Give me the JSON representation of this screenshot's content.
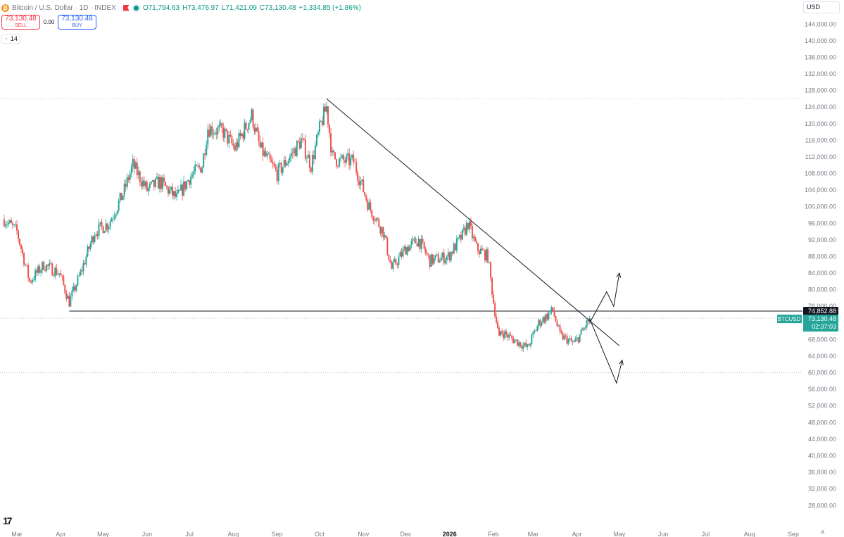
{
  "header": {
    "symbol": "Bitcoin / U.S. Dollar · 1D · INDEX",
    "open": "O71,794.63",
    "high": "H73,476.97",
    "low": "L71,421.09",
    "close": "C73,130.48",
    "change": "+1,334.85 (+1.86%)",
    "coin_icon": "bitcoin-icon",
    "coin_glyph": "₿"
  },
  "trade": {
    "sell_price": "73,130.48",
    "sell_label": "SELL",
    "spread": "0.00",
    "buy_price": "73,130.48",
    "buy_label": "BUY"
  },
  "indicator": {
    "count": "14"
  },
  "currency": {
    "label": "USD"
  },
  "footer": {
    "auto_label": "A"
  },
  "colors": {
    "up": "#26a69a",
    "down": "#ef5350",
    "grid": "#b2b5be",
    "drawing": "#131722",
    "axis_text": "#787b86",
    "badge_dark": "#131722",
    "badge_teal": "#26a69a"
  },
  "chart_data": {
    "type": "candlestick",
    "price_axis": {
      "min": 26000,
      "max": 146000,
      "ticks": [
        "144,000.00",
        "140,000.00",
        "136,000.00",
        "132,000.00",
        "128,000.00",
        "124,000.00",
        "120,000.00",
        "116,000.00",
        "112,000.00",
        "108,000.00",
        "104,000.00",
        "100,000.00",
        "96,000.00",
        "92,000.00",
        "88,000.00",
        "84,000.00",
        "80,000.00",
        "76,000.00",
        "68,000.00",
        "64,000.00",
        "60,000.00",
        "56,000.00",
        "52,000.00",
        "48,000.00",
        "44,000.00",
        "40,000.00",
        "36,000.00",
        "32,000.00",
        "28,000.00"
      ],
      "tick_values": [
        144000,
        140000,
        136000,
        132000,
        128000,
        124000,
        120000,
        116000,
        112000,
        108000,
        104000,
        100000,
        96000,
        92000,
        88000,
        84000,
        80000,
        76000,
        68000,
        64000,
        60000,
        56000,
        52000,
        48000,
        44000,
        40000,
        36000,
        32000,
        28000
      ]
    },
    "time_axis": {
      "labels": [
        "Mar",
        "Apr",
        "May",
        "Jun",
        "Jul",
        "Aug",
        "Sep",
        "Oct",
        "Nov",
        "Dec",
        "2026",
        "Feb",
        "Mar",
        "Apr",
        "May",
        "Jun",
        "Jul",
        "Aug",
        "Sep"
      ],
      "bold": [
        false,
        false,
        false,
        false,
        false,
        false,
        false,
        false,
        false,
        false,
        true,
        false,
        false,
        false,
        false,
        false,
        false,
        false,
        false
      ],
      "dates": [
        "2025-03-01",
        "2025-04-01",
        "2025-05-01",
        "2025-06-01",
        "2025-07-01",
        "2025-08-01",
        "2025-09-01",
        "2025-10-01",
        "2025-11-01",
        "2025-12-01",
        "2026-01-01",
        "2026-02-01",
        "2026-03-01",
        "2026-04-01",
        "2026-05-01",
        "2026-06-01",
        "2026-07-01",
        "2026-08-01",
        "2026-09-01"
      ]
    },
    "price_path": {
      "dates": [
        "2025-02-20",
        "2025-03-01",
        "2025-03-10",
        "2025-03-20",
        "2025-03-31",
        "2025-04-07",
        "2025-04-15",
        "2025-04-25",
        "2025-05-05",
        "2025-05-15",
        "2025-05-22",
        "2025-06-01",
        "2025-06-10",
        "2025-06-22",
        "2025-07-01",
        "2025-07-10",
        "2025-07-14",
        "2025-07-25",
        "2025-08-02",
        "2025-08-14",
        "2025-08-20",
        "2025-09-01",
        "2025-09-10",
        "2025-09-18",
        "2025-09-25",
        "2025-10-02",
        "2025-10-06",
        "2025-10-10",
        "2025-10-15",
        "2025-10-25",
        "2025-11-05",
        "2025-11-15",
        "2025-11-21",
        "2025-12-01",
        "2025-12-10",
        "2025-12-18",
        "2025-12-31",
        "2026-01-10",
        "2026-01-14",
        "2026-01-20",
        "2026-01-28",
        "2026-02-01",
        "2026-02-05",
        "2026-02-06",
        "2026-02-15",
        "2026-02-25",
        "2026-03-05",
        "2026-03-15",
        "2026-03-20",
        "2026-03-30",
        "2026-04-05",
        "2026-04-10"
      ],
      "close": [
        97000,
        94000,
        82000,
        86000,
        84000,
        77000,
        84000,
        94000,
        96000,
        103000,
        110000,
        104000,
        106000,
        102000,
        107000,
        110000,
        119000,
        118000,
        114000,
        122000,
        114000,
        108000,
        112000,
        116000,
        110000,
        120000,
        124000,
        112000,
        111000,
        111000,
        100000,
        94000,
        85000,
        90000,
        92000,
        87000,
        88000,
        93000,
        96000,
        90000,
        88000,
        77000,
        68000,
        70000,
        68000,
        66000,
        72000,
        75000,
        69000,
        67000,
        70000,
        73130.48
      ]
    },
    "drawings": {
      "horizontal_lines": [
        {
          "name": "resistance-line",
          "price": 74852.88
        },
        {
          "name": "top-dotted-line",
          "price": 126000
        },
        {
          "name": "current-price-line",
          "price": 73130.48
        },
        {
          "name": "bottom-dotted-line",
          "price": 60000
        }
      ],
      "trendline": {
        "from": [
          "2025-10-06",
          126000
        ],
        "to": [
          "2026-04-12",
          72000
        ],
        "extend_to": [
          "2026-05-01",
          66500
        ]
      },
      "bull_path": [
        [
          "2026-04-10",
          72000
        ],
        [
          "2026-04-22",
          79500
        ],
        [
          "2026-04-27",
          76000
        ],
        [
          "2026-05-01",
          84000
        ]
      ],
      "bear_path": [
        [
          "2026-04-10",
          73000
        ],
        [
          "2026-04-29",
          57500
        ],
        [
          "2026-05-03",
          63000
        ]
      ]
    },
    "badges": {
      "resistance": "74,852.88",
      "symbol": "BTCUSD",
      "last_price": "73,130.48",
      "countdown": "02:37:03"
    }
  }
}
